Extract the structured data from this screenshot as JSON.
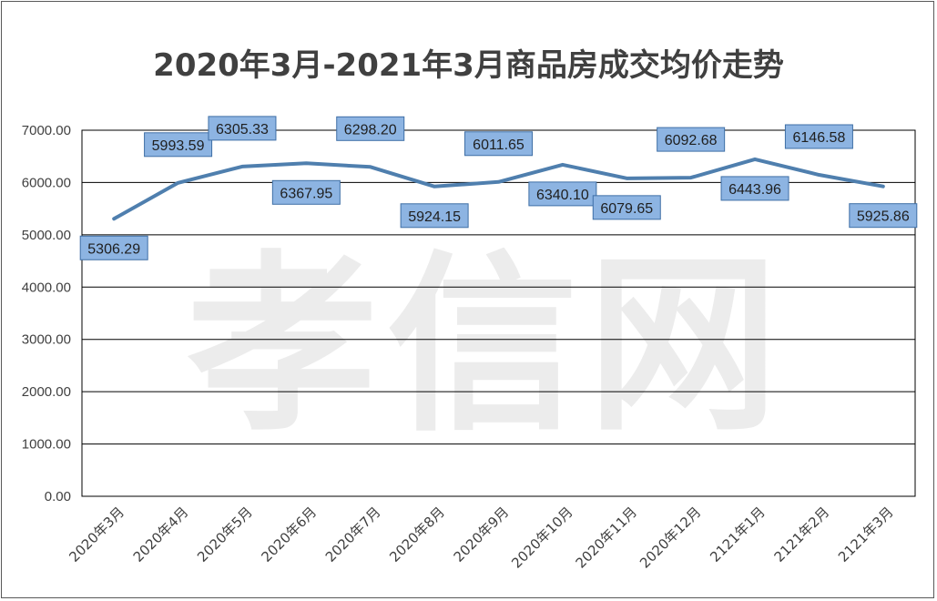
{
  "chart_data": {
    "type": "line",
    "title": "2020年3月-2021年3月商品房成交均价走势",
    "watermark": "孝信网",
    "categories": [
      "2020年3月",
      "2020年4月",
      "2020年5月",
      "2020年6月",
      "2020年7月",
      "2020年8月",
      "2020年9月",
      "2020年10月",
      "2020年11月",
      "2020年12月",
      "2121年1月",
      "2121年2月",
      "2121年3月"
    ],
    "series": [
      {
        "values": [
          5306.29,
          5993.59,
          6305.33,
          6367.95,
          6298.2,
          5924.15,
          6011.65,
          6340.1,
          6079.65,
          6092.68,
          6443.96,
          6146.58,
          5925.86
        ]
      }
    ],
    "data_labels": [
      "5306.29",
      "5993.59",
      "6305.33",
      "6367.95",
      "6298.20",
      "5924.15",
      "6011.65",
      "6340.10",
      "6079.65",
      "6092.68",
      "6443.96",
      "6146.58",
      "5925.86"
    ],
    "label_positions": [
      "below",
      "above",
      "above",
      "below",
      "above",
      "below",
      "above",
      "below",
      "below",
      "above",
      "below",
      "above",
      "below"
    ],
    "yticks": [
      "0.00",
      "1000.00",
      "2000.00",
      "3000.00",
      "4000.00",
      "5000.00",
      "6000.00",
      "7000.00"
    ],
    "ylim": [
      0,
      7000
    ],
    "grid": true,
    "legend": "none",
    "colors": {
      "line": "#4f7fae",
      "label_fill": "#8db4e2",
      "label_border": "#3f6fa6",
      "grid": "#000000"
    }
  }
}
